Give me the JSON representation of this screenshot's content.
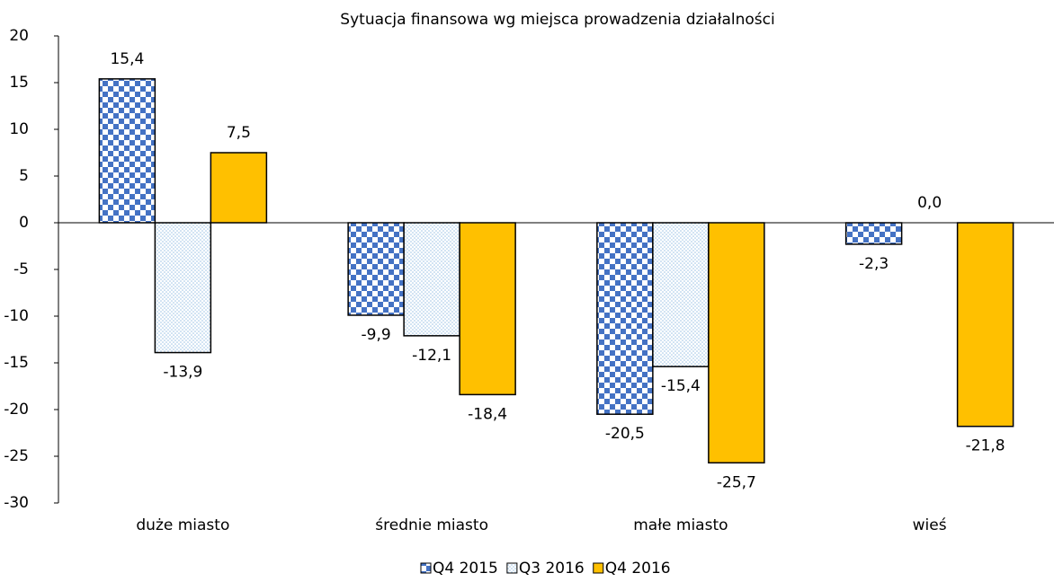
{
  "chart_data": {
    "type": "bar",
    "title": "Sytuacja finansowa wg miejsca prowadzenia działalności",
    "categories": [
      "duże miasto",
      "średnie miasto",
      "małe miasto",
      "wieś"
    ],
    "series": [
      {
        "name": "Q4 2015",
        "color": "#4472c4",
        "values": [
          15.4,
          -9.9,
          -20.5,
          -2.3
        ],
        "value_labels": [
          "15,4",
          "-9,9",
          "-20,5",
          "-2,3"
        ]
      },
      {
        "name": "Q3 2016",
        "color": "#9dc3e6",
        "values": [
          -13.9,
          -12.1,
          -15.4,
          0.0
        ],
        "value_labels": [
          "-13,9",
          "-12,1",
          "-15,4",
          "0,0"
        ]
      },
      {
        "name": "Q4 2016",
        "color": "#ffc000",
        "values": [
          7.5,
          -18.4,
          -25.7,
          -21.8
        ],
        "value_labels": [
          "7,5",
          "-18,4",
          "-25,7",
          "-21,8"
        ]
      }
    ],
    "ylim": [
      -30,
      20
    ],
    "yticks": [
      -30,
      -25,
      -20,
      -15,
      -10,
      -5,
      0,
      5,
      10,
      15,
      20
    ],
    "legend": "bottom"
  }
}
